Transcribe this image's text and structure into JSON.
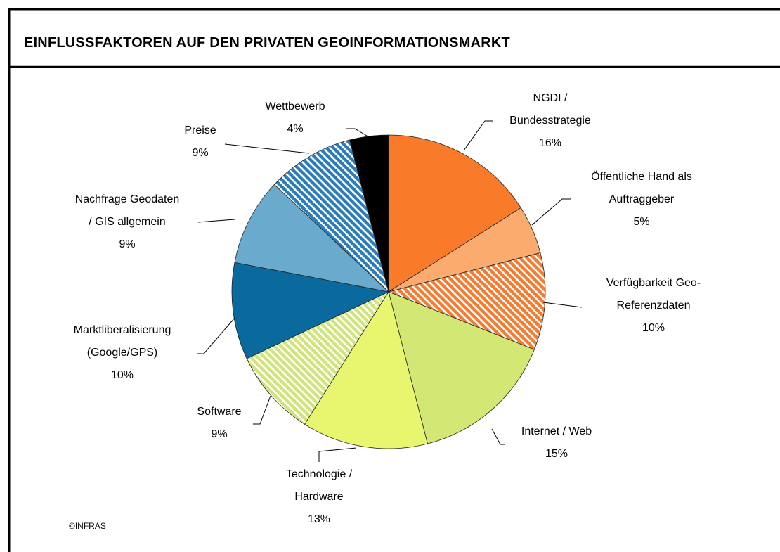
{
  "chart_data": {
    "type": "pie",
    "title": "EINFLUSSFAKTOREN AUF DEN PRIVATEN GEOINFORMATIONSMARKT",
    "categories": [
      "NGDI / Bundesstrategie",
      "Öffentliche Hand als Auftraggeber",
      "Verfügbarkeit Geo-Referenzdaten",
      "Internet / Web",
      "Technologie / Hardware",
      "Software",
      "Marktliberalisierung (Google/GPS)",
      "Nachfrage Geodaten / GIS allgemein",
      "Preise",
      "Wettbewerb"
    ],
    "values": [
      16,
      5,
      10,
      15,
      13,
      9,
      10,
      9,
      9,
      4
    ],
    "value_labels": [
      "16%",
      "5%",
      "10%",
      "15%",
      "13%",
      "9%",
      "10%",
      "9%",
      "9%",
      "4%"
    ],
    "colors": [
      "#f97b2a",
      "#fcab6f",
      "#f47b2f",
      "#d3e874",
      "#e8f56e",
      "#cfe57a",
      "#0b6a9d",
      "#6aaacc",
      "#2b7cbb",
      "#000000"
    ],
    "hatched": [
      false,
      false,
      true,
      false,
      false,
      true,
      false,
      false,
      true,
      false
    ],
    "annotation": "©INFRAS"
  }
}
